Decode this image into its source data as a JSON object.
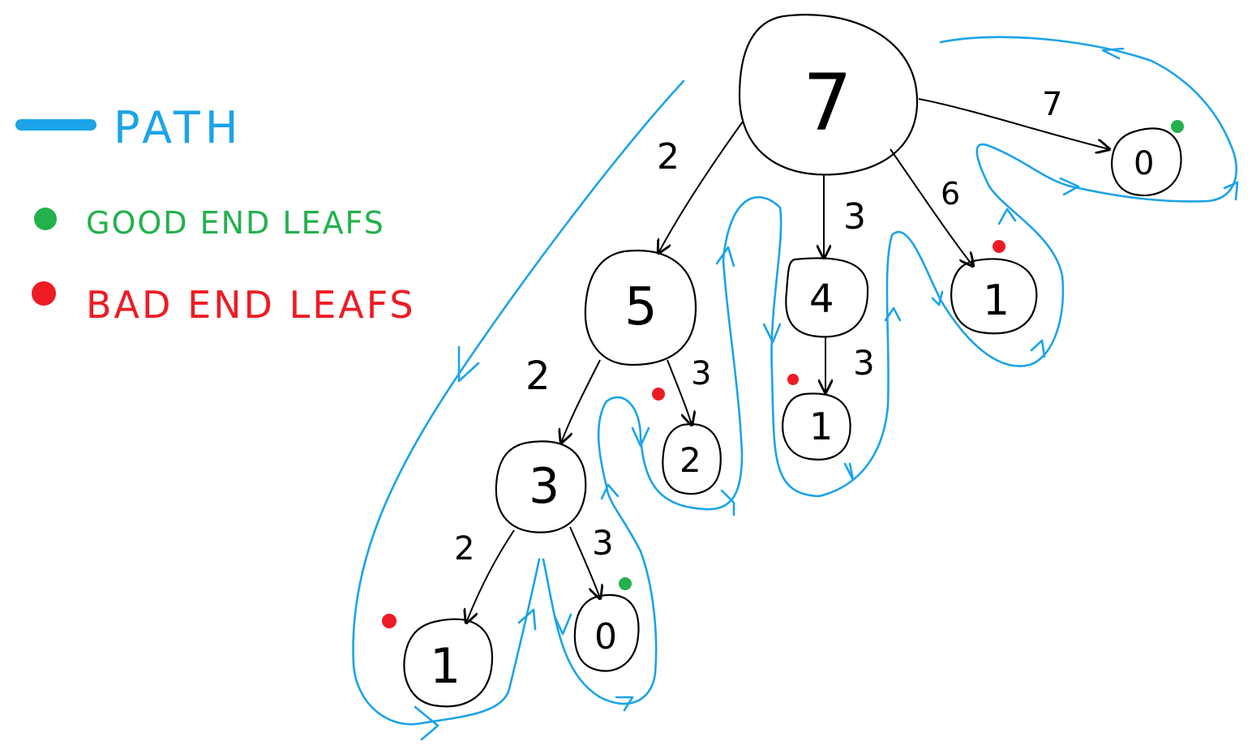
{
  "legend": {
    "path_label": "PATH",
    "good_label": "GOOD END LEAFS",
    "bad_label": "BAD END LEAFS",
    "path_color": "#1ca3e8",
    "good_color": "#22b14c",
    "bad_color": "#ed1c24"
  },
  "tree": {
    "nodes": [
      {
        "id": "n7",
        "label": "7"
      },
      {
        "id": "n5",
        "label": "5"
      },
      {
        "id": "n4",
        "label": "4"
      },
      {
        "id": "n1a",
        "label": "1",
        "leaf": "bad"
      },
      {
        "id": "n0a",
        "label": "0",
        "leaf": "good"
      },
      {
        "id": "n3",
        "label": "3"
      },
      {
        "id": "n2",
        "label": "2",
        "leaf": "bad"
      },
      {
        "id": "n1b",
        "label": "1",
        "leaf": "bad"
      },
      {
        "id": "n1c",
        "label": "1",
        "leaf": "bad"
      },
      {
        "id": "n0b",
        "label": "0",
        "leaf": "good"
      }
    ],
    "edges": [
      {
        "from": "n7",
        "to": "n5",
        "label": "2"
      },
      {
        "from": "n7",
        "to": "n4",
        "label": "3"
      },
      {
        "from": "n7",
        "to": "n1a",
        "label": "6"
      },
      {
        "from": "n7",
        "to": "n0a",
        "label": "7"
      },
      {
        "from": "n5",
        "to": "n3",
        "label": "2"
      },
      {
        "from": "n5",
        "to": "n2",
        "label": "3"
      },
      {
        "from": "n4",
        "to": "n1b",
        "label": "3"
      },
      {
        "from": "n3",
        "to": "n1c",
        "label": "2"
      },
      {
        "from": "n3",
        "to": "n0b",
        "label": "3"
      }
    ]
  }
}
